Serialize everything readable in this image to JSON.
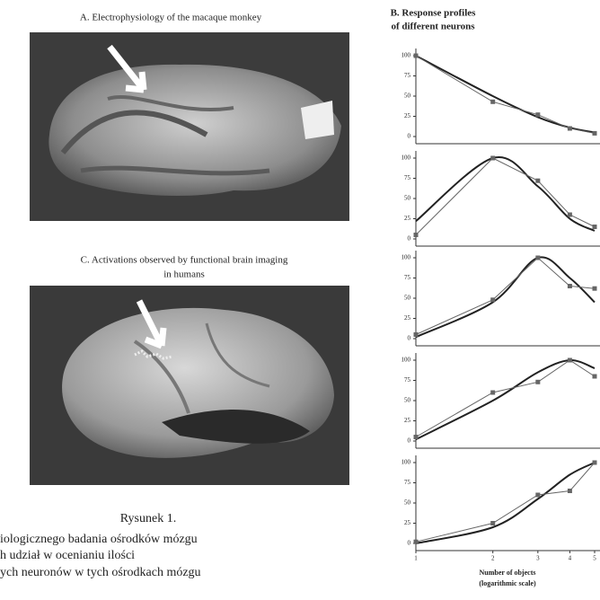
{
  "panel_a": {
    "title": "A. Electrophysiology of the macaque monkey"
  },
  "panel_b": {
    "title": [
      "B. Response profiles",
      "of different neurons"
    ]
  },
  "panel_c": {
    "title": [
      "C. Activations observed by functional brain imaging",
      "in humans"
    ]
  },
  "caption": {
    "label": "Rysunek 1.",
    "lines": [
      "iologicznego badania ośrodków mózgu",
      "h udział w ocenianiu ilości",
      "ych neuronów w tych ośrodkach mózgu"
    ]
  },
  "chart_data": [
    {
      "type": "line",
      "xscale": "log",
      "xlim": [
        1,
        5
      ],
      "ylim": [
        0,
        100
      ],
      "yticks": [
        0,
        25,
        50,
        75,
        100
      ],
      "x": [
        1,
        2,
        3,
        4,
        5
      ],
      "series": [
        {
          "color": "#222222",
          "smooth": true,
          "values": [
            100,
            50,
            24,
            11,
            5
          ]
        },
        {
          "color": "#666666",
          "markers": true,
          "values": [
            100,
            43,
            27,
            10,
            4
          ]
        }
      ]
    },
    {
      "type": "line",
      "xscale": "log",
      "xlim": [
        1,
        5
      ],
      "ylim": [
        0,
        100
      ],
      "yticks": [
        0,
        25,
        50,
        75,
        100
      ],
      "x": [
        1,
        2,
        3,
        4,
        5
      ],
      "series": [
        {
          "color": "#222222",
          "smooth": true,
          "values": [
            22,
            100,
            65,
            25,
            10
          ]
        },
        {
          "color": "#666666",
          "markers": true,
          "values": [
            5,
            100,
            72,
            30,
            15
          ]
        }
      ]
    },
    {
      "type": "line",
      "xscale": "log",
      "xlim": [
        1,
        5
      ],
      "ylim": [
        0,
        100
      ],
      "yticks": [
        0,
        25,
        50,
        75,
        100
      ],
      "x": [
        1,
        2,
        3,
        4,
        5
      ],
      "series": [
        {
          "color": "#222222",
          "smooth": true,
          "values": [
            2,
            45,
            100,
            75,
            45
          ]
        },
        {
          "color": "#666666",
          "markers": true,
          "values": [
            5,
            48,
            100,
            65,
            62
          ]
        }
      ]
    },
    {
      "type": "line",
      "xscale": "log",
      "xlim": [
        1,
        5
      ],
      "ylim": [
        0,
        100
      ],
      "yticks": [
        0,
        25,
        50,
        75,
        100
      ],
      "x": [
        1,
        2,
        3,
        4,
        5
      ],
      "series": [
        {
          "color": "#222222",
          "smooth": true,
          "values": [
            2,
            50,
            85,
            100,
            90
          ]
        },
        {
          "color": "#666666",
          "markers": true,
          "values": [
            5,
            60,
            73,
            100,
            80
          ]
        }
      ]
    },
    {
      "type": "line",
      "xscale": "log",
      "xlim": [
        1,
        5
      ],
      "ylim": [
        0,
        100
      ],
      "yticks": [
        0,
        25,
        50,
        75,
        100
      ],
      "x": [
        1,
        2,
        3,
        4,
        5
      ],
      "xticks": [
        1,
        2,
        3,
        4,
        5
      ],
      "xlabel": [
        "Number of objects",
        "(logarithmic scale)"
      ],
      "series": [
        {
          "color": "#222222",
          "smooth": true,
          "values": [
            0,
            20,
            55,
            85,
            100
          ]
        },
        {
          "color": "#666666",
          "markers": true,
          "values": [
            2,
            25,
            60,
            65,
            100
          ]
        }
      ]
    }
  ]
}
